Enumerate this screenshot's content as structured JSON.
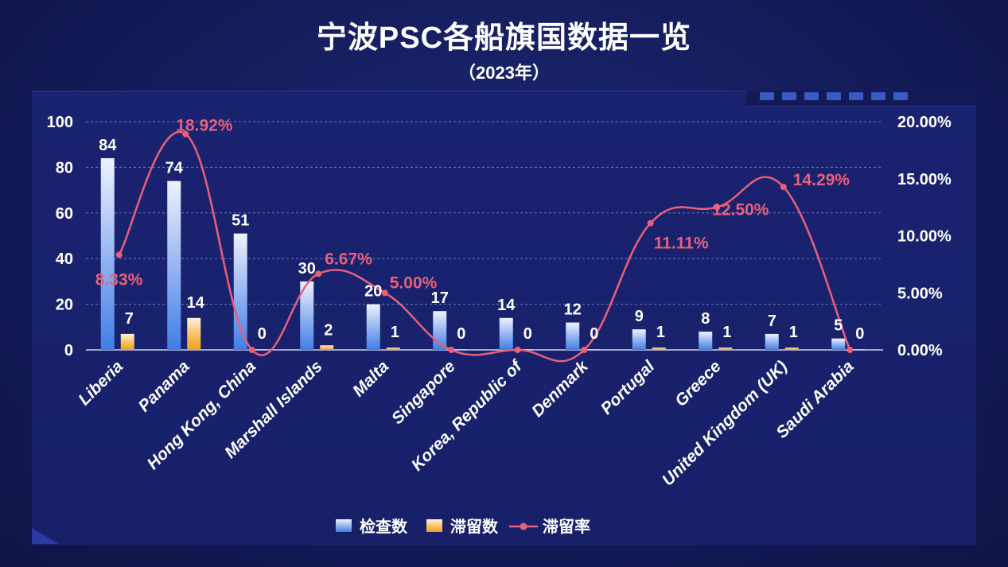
{
  "title": "宁波PSC各船旗国数据一览",
  "subtitle": "（2023年）",
  "chart_data": {
    "type": "bar",
    "categories": [
      "Liberia",
      "Panama",
      "Hong Kong, China",
      "Marshall Islands",
      "Malta",
      "Singapore",
      "Korea, Republic of",
      "Denmark",
      "Portugal",
      "Greece",
      "United Kingdom (UK)",
      "Saudi Arabia"
    ],
    "series": [
      {
        "name": "检查数",
        "type": "bar",
        "axis": "left",
        "color": "#4a86e8",
        "values": [
          84,
          74,
          51,
          30,
          20,
          17,
          14,
          12,
          9,
          8,
          7,
          5
        ]
      },
      {
        "name": "滞留数",
        "type": "bar",
        "axis": "left",
        "color": "#f5a623",
        "values": [
          7,
          14,
          0,
          2,
          1,
          0,
          0,
          0,
          1,
          1,
          1,
          0
        ]
      },
      {
        "name": "滞留率",
        "type": "line",
        "axis": "right",
        "color": "#e8607a",
        "values": [
          8.33,
          18.92,
          0,
          6.67,
          5.0,
          0,
          0,
          0,
          11.11,
          12.5,
          14.29,
          0
        ],
        "labels": [
          "8.33%",
          "18.92%",
          "",
          "6.67%",
          "5.00%",
          "",
          "",
          "",
          "11.11%",
          "12.50%",
          "14.29%",
          ""
        ]
      }
    ],
    "y_left": {
      "ylim": [
        0,
        100
      ],
      "ticks": [
        "0",
        "20",
        "40",
        "60",
        "80",
        "100"
      ]
    },
    "y_right": {
      "ylim": [
        0,
        20
      ],
      "ticks": [
        "0.00%",
        "5.00%",
        "10.00%",
        "15.00%",
        "20.00%"
      ]
    },
    "grid": true,
    "legend_position": "bottom-center"
  }
}
